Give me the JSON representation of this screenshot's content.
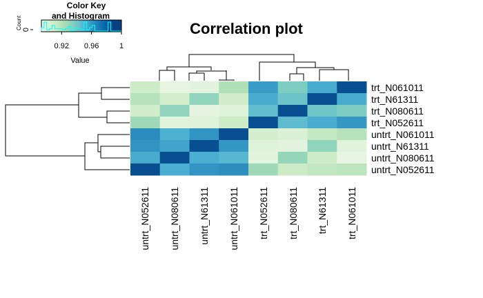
{
  "chart_data": {
    "type": "heatmap",
    "title": "Correlation plot",
    "row_labels": [
      "trt_N061011",
      "trt_N61311",
      "trt_N080611",
      "trt_N052611",
      "untrt_N061011",
      "untrt_N61311",
      "untrt_N080611",
      "untrt_N052611"
    ],
    "col_labels": [
      "untrt_N052611",
      "untrt_N080611",
      "untrt_N61311",
      "untrt_N061011",
      "trt_N052611",
      "trt_N080611",
      "trt_N61311",
      "trt_N061011"
    ],
    "values": [
      [
        0.91,
        0.895,
        0.897,
        0.922,
        0.958,
        0.937,
        0.953,
        0.985
      ],
      [
        0.919,
        0.907,
        0.931,
        0.908,
        0.953,
        0.942,
        0.985,
        0.953
      ],
      [
        0.908,
        0.931,
        0.896,
        0.899,
        0.945,
        0.985,
        0.941,
        0.937
      ],
      [
        0.927,
        0.898,
        0.899,
        0.909,
        0.985,
        0.946,
        0.953,
        0.96
      ],
      [
        0.964,
        0.951,
        0.961,
        0.985,
        0.907,
        0.902,
        0.914,
        0.919
      ],
      [
        0.961,
        0.955,
        0.985,
        0.96,
        0.899,
        0.897,
        0.931,
        0.898
      ],
      [
        0.953,
        0.985,
        0.952,
        0.948,
        0.897,
        0.93,
        0.909,
        0.894
      ],
      [
        0.985,
        0.952,
        0.961,
        0.963,
        0.927,
        0.911,
        0.915,
        0.917
      ]
    ],
    "color_scale": [
      "#f7fcf0",
      "#e0f3db",
      "#ccebc5",
      "#a8ddb5",
      "#7bccc4",
      "#4eb3d3",
      "#2b8cbe",
      "#0868ac",
      "#084081"
    ],
    "value_range": [
      0.885,
      0.99
    ],
    "color_key": {
      "title_lines": [
        "Color Key",
        "and Histogram"
      ],
      "xlabel": "Value",
      "ylabel": "Count",
      "ytick": "0",
      "xticks": [
        0.92,
        0.96,
        1
      ],
      "xtick_labels": [
        "0.92",
        "0.96",
        "1"
      ],
      "histogram_color": "#00ffff"
    },
    "row_dendrogram": true,
    "col_dendrogram": true
  }
}
